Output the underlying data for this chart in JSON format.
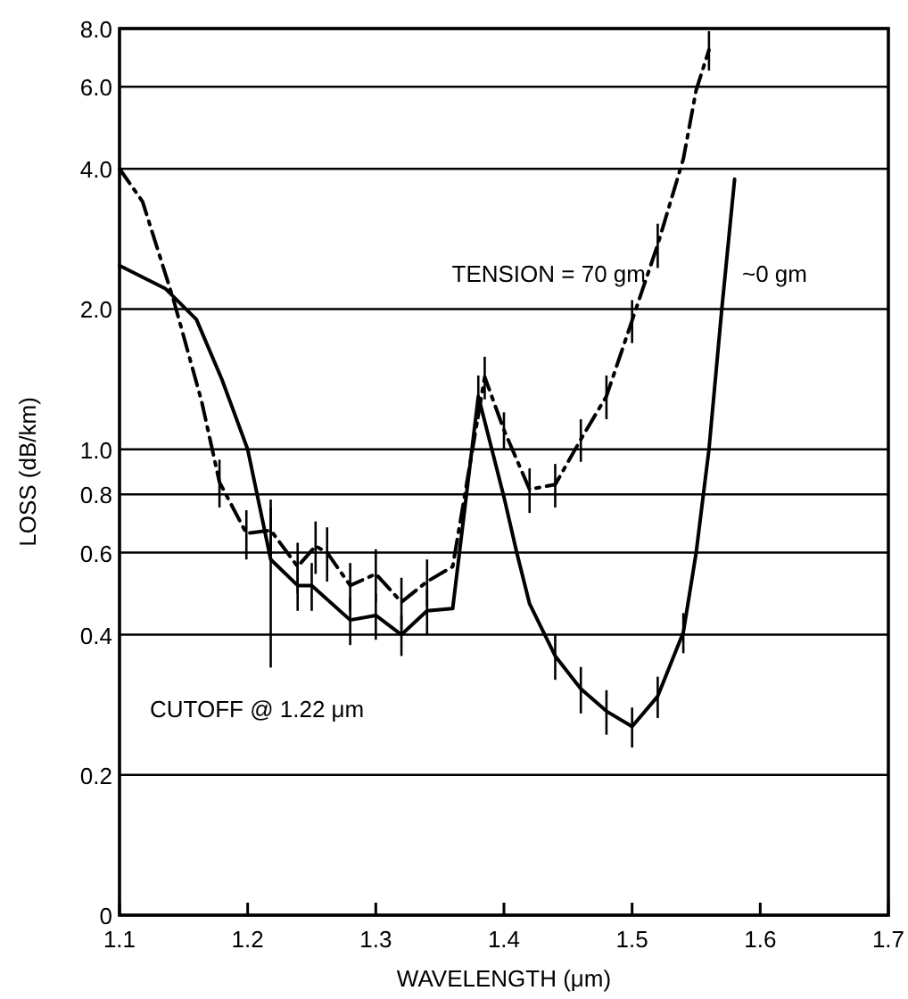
{
  "chart_data": {
    "type": "line",
    "xlabel": "WAVELENGTH (μm)",
    "ylabel": "LOSS (dB/km)",
    "log": "y",
    "grid": "y",
    "marker": "none",
    "xlim": [
      1.1,
      1.7
    ],
    "xticks": [
      1.1,
      1.2,
      1.3,
      1.4,
      1.5,
      1.6,
      1.7
    ],
    "ylim": [
      0.1,
      8
    ],
    "yticks": [
      {
        "value": 0.1,
        "label": "0"
      },
      0.2,
      0.4,
      0.6,
      0.8,
      {
        "value": 1,
        "label": "1.0"
      },
      {
        "value": 2,
        "label": "2.0"
      },
      {
        "value": 4,
        "label": "4.0"
      },
      {
        "value": 6,
        "label": "6.0"
      },
      {
        "value": 8,
        "label": "8.0"
      }
    ],
    "series": [
      {
        "name": "TENSION = 70 gm",
        "color": "#000000",
        "line_style": "dashed",
        "x": [
          1.1,
          1.118,
          1.142,
          1.164,
          1.178,
          1.199,
          1.218,
          1.239,
          1.253,
          1.262,
          1.28,
          1.3,
          1.32,
          1.34,
          1.36,
          1.385,
          1.4,
          1.42,
          1.44,
          1.46,
          1.48,
          1.5,
          1.52,
          1.54,
          1.55,
          1.56
        ],
        "values": [
          4.0,
          3.4,
          2.1,
          1.27,
          0.85,
          0.66,
          0.67,
          0.56,
          0.62,
          0.6,
          0.51,
          0.54,
          0.47,
          0.52,
          0.56,
          1.43,
          1.1,
          0.82,
          0.84,
          1.05,
          1.3,
          1.89,
          2.75,
          4.2,
          5.9,
          7.2
        ],
        "errors": [
          null,
          null,
          null,
          null,
          0.1,
          0.08,
          0.08,
          0.07,
          0.08,
          0.08,
          0.06,
          0.07,
          0.06,
          0.06,
          null,
          0.15,
          0.1,
          0.09,
          0.09,
          0.11,
          0.14,
          0.2,
          0.3,
          null,
          null,
          0.7
        ]
      },
      {
        "name": "~0 gm",
        "color": "#000000",
        "line_style": "solid",
        "x": [
          1.1,
          1.136,
          1.16,
          1.18,
          1.2,
          1.218,
          1.239,
          1.25,
          1.28,
          1.3,
          1.32,
          1.34,
          1.36,
          1.38,
          1.4,
          1.41,
          1.42,
          1.44,
          1.46,
          1.48,
          1.5,
          1.52,
          1.54,
          1.55,
          1.56,
          1.57,
          1.58
        ],
        "values": [
          2.48,
          2.21,
          1.9,
          1.41,
          1.0,
          0.58,
          0.51,
          0.51,
          0.43,
          0.44,
          0.4,
          0.45,
          0.455,
          1.3,
          0.79,
          0.6,
          0.466,
          0.36,
          0.306,
          0.274,
          0.254,
          0.295,
          0.405,
          0.6,
          1.0,
          2.0,
          3.8
        ],
        "errors": [
          null,
          null,
          null,
          null,
          null,
          [
            0.34,
            0.78
          ],
          0.06,
          0.06,
          0.05,
          0.05,
          0.04,
          0.05,
          null,
          0.14,
          null,
          null,
          null,
          0.04,
          0.035,
          0.03,
          0.025,
          0.03,
          0.04,
          null,
          null,
          null,
          null
        ]
      }
    ],
    "annotations": [
      "CUTOFF @ 1.22 μm"
    ]
  }
}
